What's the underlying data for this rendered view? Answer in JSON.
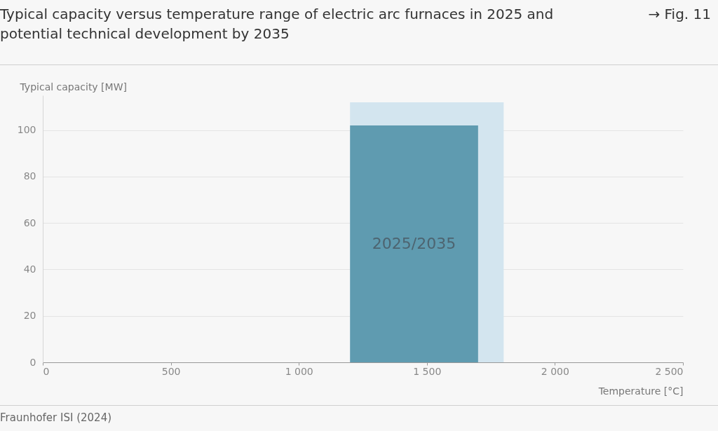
{
  "chart_data": {
    "type": "area",
    "title": "Typical capacity versus temperature range of electric arc furnaces in 2025 and potential technical development by 2035",
    "xlabel": "Temperature [°C]",
    "ylabel": "Typical capacity [MW]",
    "series": [
      {
        "color": "#d3e5ef",
        "x": [
          1200,
          1800
        ],
        "values": [
          112,
          112
        ]
      },
      {
        "color": "#5f9bb0",
        "x": [
          1200,
          1700
        ],
        "values": [
          102,
          102
        ]
      }
    ],
    "xlim": [
      0,
      2500
    ],
    "xticks": [
      0,
      500,
      {
        "value": 1000,
        "label": "1 000"
      },
      {
        "value": 1500,
        "label": "1 500"
      },
      {
        "value": 2000,
        "label": "2 000"
      },
      {
        "value": 2500,
        "label": "2 500"
      }
    ],
    "ylim": [
      0,
      115
    ],
    "yticks": [
      0,
      20,
      40,
      60,
      80,
      100
    ],
    "grid": "y",
    "annotations": [
      "→ Fig. 11",
      "2025/2035",
      "Fraunhofer ISI (2024)"
    ]
  }
}
